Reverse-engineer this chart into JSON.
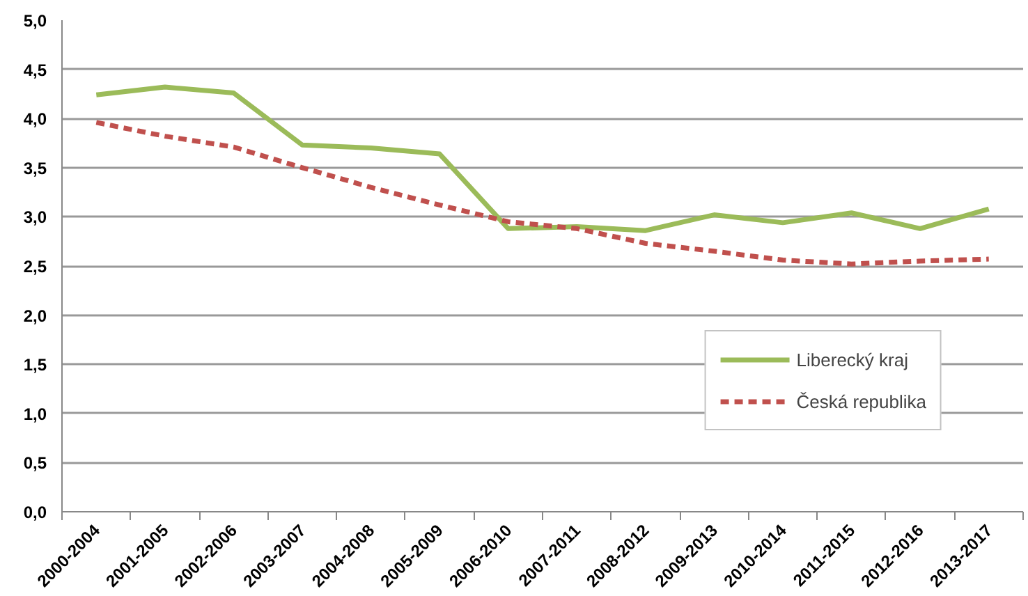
{
  "chart_data": {
    "type": "line",
    "categories": [
      "2000-2004",
      "2001-2005",
      "2002-2006",
      "2003-2007",
      "2004-2008",
      "2005-2009",
      "2006-2010",
      "2007-2011",
      "2008-2012",
      "2009-2013",
      "2010-2014",
      "2011-2015",
      "2012-2016",
      "2013-2017"
    ],
    "series": [
      {
        "name": "Liberecký kraj",
        "color": "#9bbb59",
        "line_style": "solid",
        "values": [
          4.24,
          4.32,
          4.26,
          3.73,
          3.7,
          3.64,
          2.88,
          2.9,
          2.86,
          3.02,
          2.94,
          3.04,
          2.88,
          3.08
        ]
      },
      {
        "name": "Česká republika",
        "color": "#c0504d",
        "line_style": "dashed",
        "values": [
          3.96,
          3.82,
          3.71,
          3.5,
          3.3,
          3.12,
          2.95,
          2.88,
          2.73,
          2.65,
          2.56,
          2.52,
          2.55,
          2.57
        ]
      }
    ],
    "ylim": [
      0,
      5
    ],
    "yticks": [
      {
        "value": 0,
        "label": "0,0"
      },
      {
        "value": 0.5,
        "label": "0,5"
      },
      {
        "value": 1,
        "label": "1,0"
      },
      {
        "value": 1.5,
        "label": "1,5"
      },
      {
        "value": 2,
        "label": "2,0"
      },
      {
        "value": 2.5,
        "label": "2,5"
      },
      {
        "value": 3,
        "label": "3,0"
      },
      {
        "value": 3.5,
        "label": "3,5"
      },
      {
        "value": 4,
        "label": "4,0"
      },
      {
        "value": 4.5,
        "label": "4,5"
      },
      {
        "value": 5,
        "label": "5,0"
      }
    ],
    "grid": "y",
    "legend": "bottom right"
  }
}
